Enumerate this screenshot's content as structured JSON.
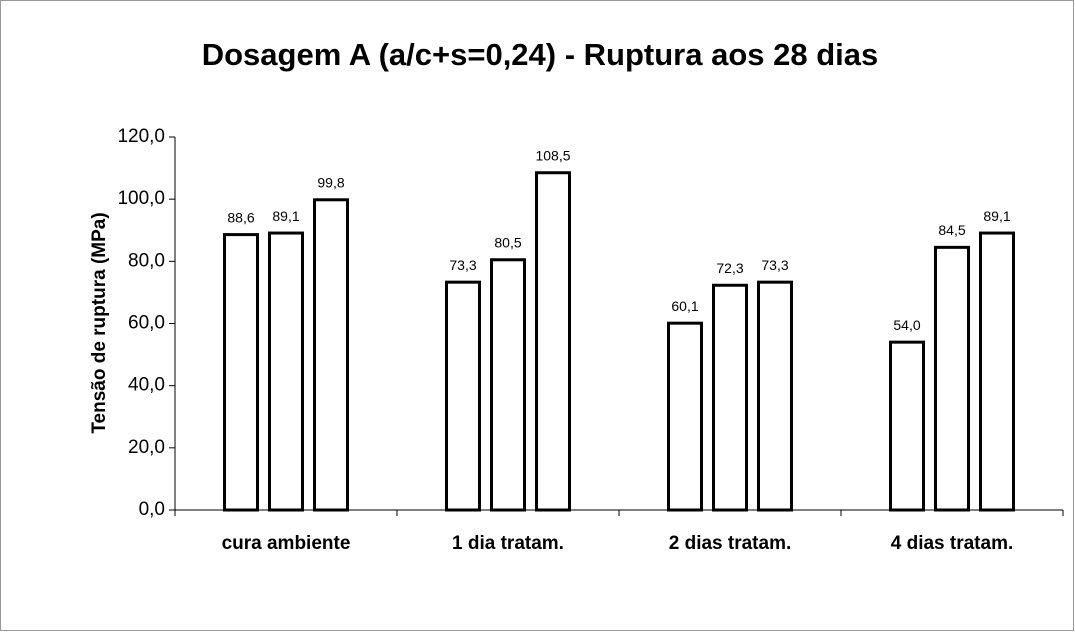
{
  "chart_data": {
    "type": "bar",
    "title": "Dosagem A (a/c+s=0,24)  -  Ruptura aos 28 dias",
    "ylabel": "Tensão de ruptura (MPa)",
    "categories": [
      "cura ambiente",
      "1 dia tratam.",
      "2 dias tratam.",
      "4 dias tratam."
    ],
    "series": [
      {
        "color": "#ffffff",
        "values": [
          88.6,
          73.3,
          60.1,
          54.0
        ],
        "value_labels": [
          "88,6",
          "73,3",
          "60,1",
          "54,0"
        ]
      },
      {
        "color": "#ffffff",
        "values": [
          89.1,
          80.5,
          72.3,
          84.5
        ],
        "value_labels": [
          "89,1",
          "80,5",
          "72,3",
          "84,5"
        ]
      },
      {
        "color": "#ffffff",
        "values": [
          99.8,
          108.5,
          73.3,
          89.1
        ],
        "value_labels": [
          "99,8",
          "108,5",
          "73,3",
          "89,1"
        ]
      }
    ],
    "edgecolor": "#000000",
    "ylim": [
      0,
      120
    ],
    "yticks": [
      {
        "value": 0,
        "label": "0,0"
      },
      {
        "value": 20,
        "label": "20,0"
      },
      {
        "value": 40,
        "label": "40,0"
      },
      {
        "value": 60,
        "label": "60,0"
      },
      {
        "value": 80,
        "label": "80,0"
      },
      {
        "value": 100,
        "label": "100,0"
      },
      {
        "value": 120,
        "label": "120,0"
      }
    ],
    "grid": false
  }
}
